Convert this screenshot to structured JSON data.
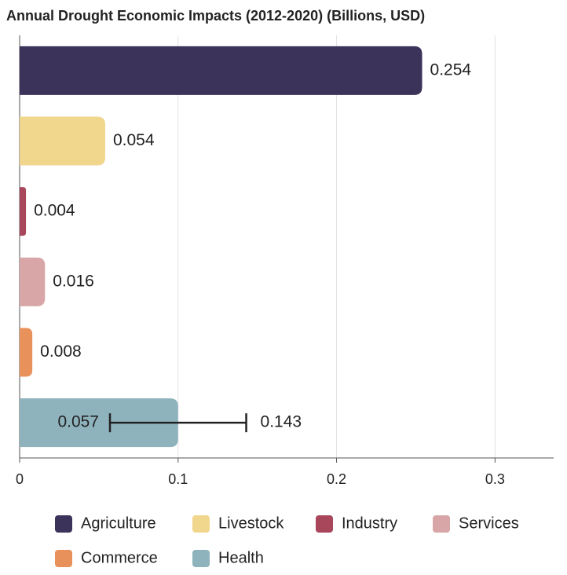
{
  "chart_data": {
    "type": "hbar",
    "title": "Annual Drought Economic Impacts (2012-2020) (Billions, USD)",
    "categories": [
      "Agriculture",
      "Livestock",
      "Industry",
      "Services",
      "Commerce",
      "Health"
    ],
    "values": [
      0.254,
      0.054,
      0.004,
      0.016,
      0.008,
      0.1
    ],
    "colors": [
      "#3b3359",
      "#f1d68d",
      "#a8465b",
      "#d8a6a6",
      "#e8915b",
      "#8fb3bd"
    ],
    "error_low": [
      null,
      null,
      null,
      null,
      null,
      0.057
    ],
    "error_high": [
      null,
      null,
      null,
      null,
      null,
      0.143
    ],
    "xlim": [
      0,
      0.337
    ],
    "xticks": [
      0,
      0.1,
      0.2,
      0.3
    ],
    "grid": true
  }
}
